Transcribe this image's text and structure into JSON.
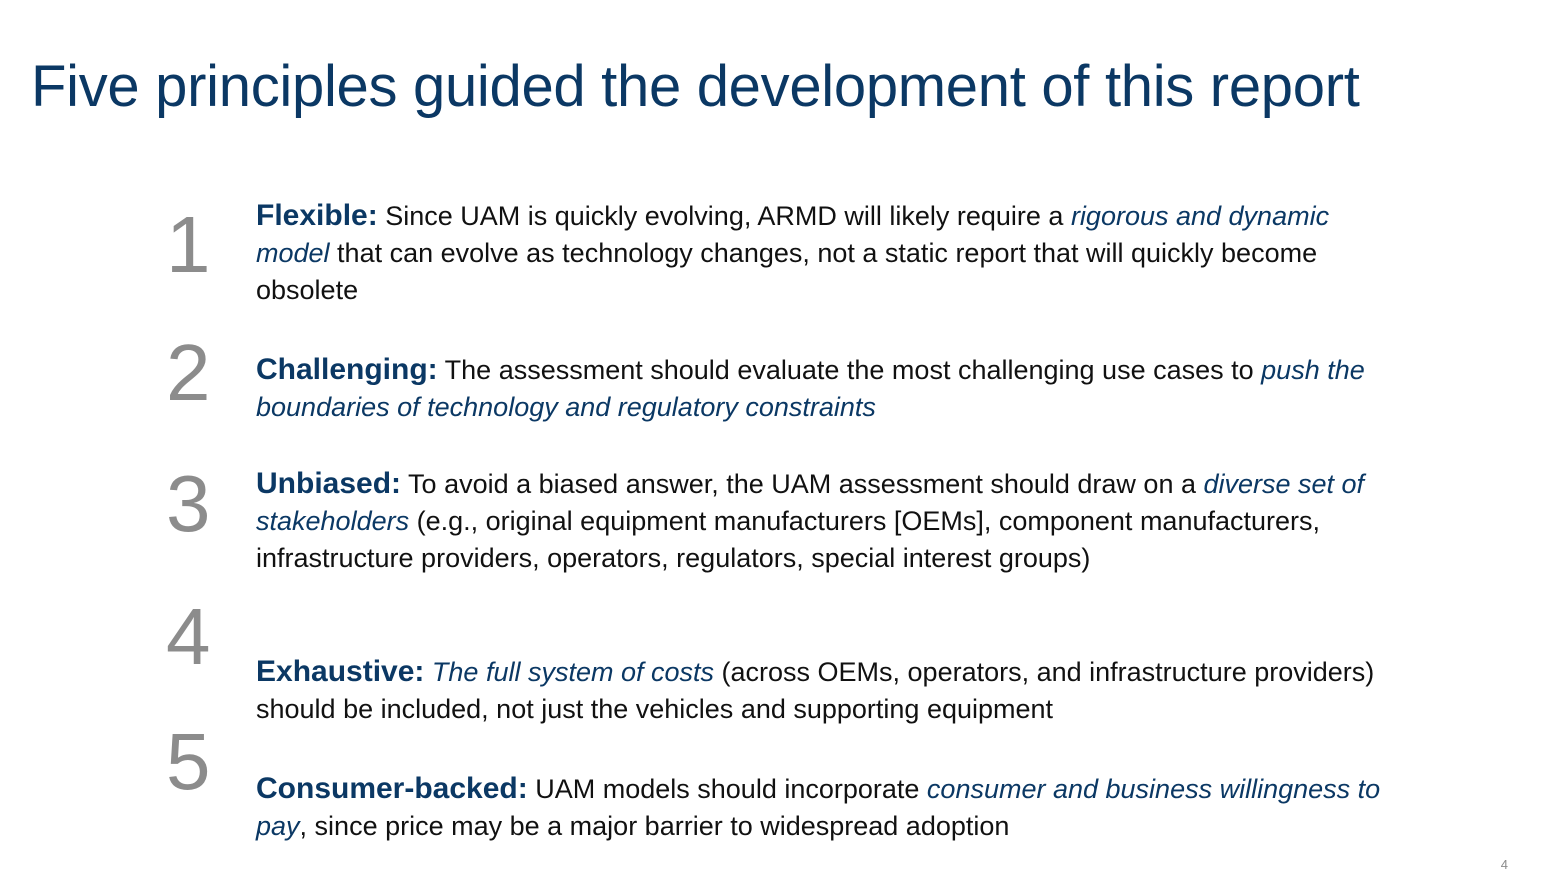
{
  "title": "Five principles guided the development of this report",
  "page_number": "4",
  "colors": {
    "title": "#0b3864",
    "lead": "#0b3864",
    "emphasis": "#0b3864",
    "body_text": "#111111",
    "numbers": "#8c8c8c"
  },
  "principles": [
    {
      "number": "1",
      "lead": "Flexible:",
      "text_1": " Since UAM is quickly evolving, ARMD will likely require a ",
      "emphasis_1": "rigorous and dynamic model",
      "text_2": " that can evolve as technology changes, not a static report that will quickly become obsolete"
    },
    {
      "number": "2",
      "lead": "Challenging:",
      "text_1": " The assessment should evaluate the most challenging use cases to ",
      "emphasis_1": "push the boundaries of technology and regulatory constraints",
      "text_2": ""
    },
    {
      "number": "3",
      "lead": "Unbiased:",
      "text_1": " To avoid a biased answer, the UAM assessment should draw on a ",
      "emphasis_1": "diverse set of stakeholders",
      "text_2": " (e.g., original equipment manufacturers [OEMs], component manufacturers, infrastructure providers, operators, regulators, special interest groups)"
    },
    {
      "number": "4",
      "lead": "Exhaustive:",
      "text_1": " ",
      "emphasis_1": "The full system of costs",
      "text_2": " (across OEMs, operators, and infrastructure providers) should be included, not just the vehicles and supporting equipment"
    },
    {
      "number": "5",
      "lead": "Consumer-backed:",
      "text_1": " UAM models should incorporate ",
      "emphasis_1": "consumer and business willingness to pay",
      "text_2": ", since price may be a major barrier to widespread adoption"
    }
  ]
}
